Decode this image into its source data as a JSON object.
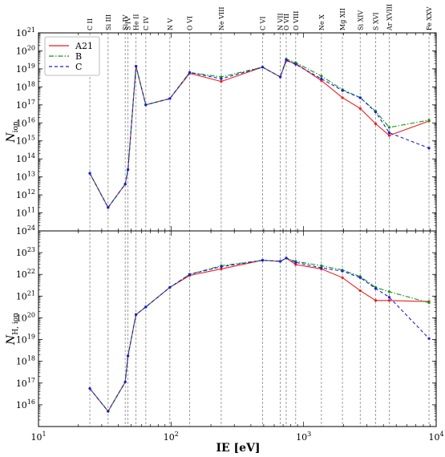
{
  "chart_data": {
    "type": "line",
    "x_scale": "log",
    "xlim": [
      10,
      10000
    ],
    "xlabel": "IE [eV]",
    "x_tick_labels": [
      "10^1",
      "10^2",
      "10^3",
      "10^4"
    ],
    "ions": [
      {
        "label": "C II",
        "ie": 24.4
      },
      {
        "label": "Si III",
        "ie": 33.5
      },
      {
        "label": "Si IV",
        "ie": 45.1
      },
      {
        "label": "S IV",
        "ie": 47.3
      },
      {
        "label": "He II",
        "ie": 54.4
      },
      {
        "label": "C IV",
        "ie": 64.5
      },
      {
        "label": "N V",
        "ie": 97.9
      },
      {
        "label": "O VI",
        "ie": 138.1
      },
      {
        "label": "Ne VIII",
        "ie": 239.1
      },
      {
        "label": "C VI",
        "ie": 490.0
      },
      {
        "label": "N VII",
        "ie": 667.0
      },
      {
        "label": "O VII",
        "ie": 739.3
      },
      {
        "label": "O VIII",
        "ie": 871.4
      },
      {
        "label": "Ne X",
        "ie": 1362
      },
      {
        "label": "Mg XII",
        "ie": 1963
      },
      {
        "label": "Si XIV",
        "ie": 2673
      },
      {
        "label": "S XVI",
        "ie": 3494
      },
      {
        "label": "Ar XVIII",
        "ie": 4426
      },
      {
        "label": "Fe XXV",
        "ie": 8828
      }
    ],
    "legend": {
      "position": "top-left",
      "entries": [
        "A21",
        "B",
        "C"
      ]
    },
    "panels": [
      {
        "ylabel": "N_ion",
        "ylabel_main": "N",
        "ylabel_sub": "ion",
        "ylim_log10": [
          10,
          21
        ],
        "y_tick_exponents": [
          11,
          12,
          13,
          14,
          15,
          16,
          17,
          18,
          19,
          20,
          21
        ],
        "series": [
          {
            "name": "A21",
            "color": "#ee1c1c",
            "dash": "solid",
            "x": [
              24.4,
              33.5,
              45.1,
              47.3,
              54.4,
              64.5,
              97.9,
              138.1,
              239.1,
              490,
              667,
              739.3,
              871.4,
              1362,
              1963,
              2673,
              3494,
              4426,
              8828
            ],
            "log10_y": [
              13.2,
              11.3,
              12.6,
              13.4,
              19.15,
              17.0,
              17.35,
              18.75,
              18.3,
              19.1,
              18.55,
              19.45,
              19.3,
              18.35,
              17.4,
              16.8,
              15.95,
              15.3,
              16.1
            ]
          },
          {
            "name": "B",
            "color": "#119911",
            "dash": "dashdot",
            "x": [
              24.4,
              33.5,
              45.1,
              47.3,
              54.4,
              64.5,
              97.9,
              138.1,
              239.1,
              490,
              667,
              739.3,
              871.4,
              1362,
              1963,
              2673,
              3494,
              4426,
              8828
            ],
            "log10_y": [
              13.2,
              11.3,
              12.6,
              13.4,
              19.15,
              17.0,
              17.35,
              18.8,
              18.55,
              19.1,
              18.55,
              19.55,
              19.35,
              18.6,
              17.85,
              17.4,
              16.65,
              15.75,
              16.15
            ]
          },
          {
            "name": "C",
            "color": "#1c1cdd",
            "dash": "dashed",
            "x": [
              24.4,
              33.5,
              45.1,
              47.3,
              54.4,
              64.5,
              97.9,
              138.1,
              239.1,
              490,
              667,
              739.3,
              871.4,
              1362,
              1963,
              2673,
              3494,
              4426,
              8828
            ],
            "log10_y": [
              13.2,
              11.3,
              12.6,
              13.4,
              19.15,
              17.0,
              17.35,
              18.8,
              18.45,
              19.1,
              18.55,
              19.5,
              19.25,
              18.45,
              17.8,
              17.4,
              16.6,
              15.45,
              14.6
            ]
          }
        ]
      },
      {
        "ylabel": "N_H,ion",
        "ylabel_main": "N",
        "ylabel_sub": "H, ion",
        "ylim_log10": [
          15,
          24
        ],
        "y_tick_exponents": [
          16,
          17,
          18,
          19,
          20,
          21,
          22,
          23,
          24
        ],
        "series": [
          {
            "name": "A21",
            "color": "#ee1c1c",
            "dash": "solid",
            "x": [
              24.4,
              33.5,
              45.1,
              47.3,
              54.4,
              64.5,
              97.9,
              138.1,
              239.1,
              490,
              667,
              739.3,
              871.4,
              1362,
              1963,
              2673,
              3494,
              4426,
              8828
            ],
            "log10_y": [
              16.75,
              15.7,
              17.05,
              18.25,
              20.15,
              20.5,
              21.4,
              21.95,
              22.25,
              22.65,
              22.6,
              22.75,
              22.45,
              22.25,
              21.85,
              21.25,
              20.8,
              20.8,
              20.75
            ]
          },
          {
            "name": "B",
            "color": "#119911",
            "dash": "dashdot",
            "x": [
              24.4,
              33.5,
              45.1,
              47.3,
              54.4,
              64.5,
              97.9,
              138.1,
              239.1,
              490,
              667,
              739.3,
              871.4,
              1362,
              1963,
              2673,
              3494,
              4426,
              8828
            ],
            "log10_y": [
              16.75,
              15.7,
              17.05,
              18.25,
              20.15,
              20.5,
              21.4,
              22.0,
              22.4,
              22.65,
              22.6,
              22.75,
              22.6,
              22.4,
              22.2,
              21.9,
              21.4,
              21.2,
              20.7
            ]
          },
          {
            "name": "C",
            "color": "#1c1cdd",
            "dash": "dashed",
            "x": [
              24.4,
              33.5,
              45.1,
              47.3,
              54.4,
              64.5,
              97.9,
              138.1,
              239.1,
              490,
              667,
              739.3,
              871.4,
              1362,
              1963,
              2673,
              3494,
              4426,
              8828
            ],
            "log10_y": [
              16.75,
              15.7,
              17.05,
              18.25,
              20.15,
              20.5,
              21.4,
              22.0,
              22.35,
              22.65,
              22.6,
              22.75,
              22.55,
              22.3,
              22.15,
              21.85,
              21.35,
              20.95,
              19.05
            ]
          }
        ]
      }
    ]
  }
}
